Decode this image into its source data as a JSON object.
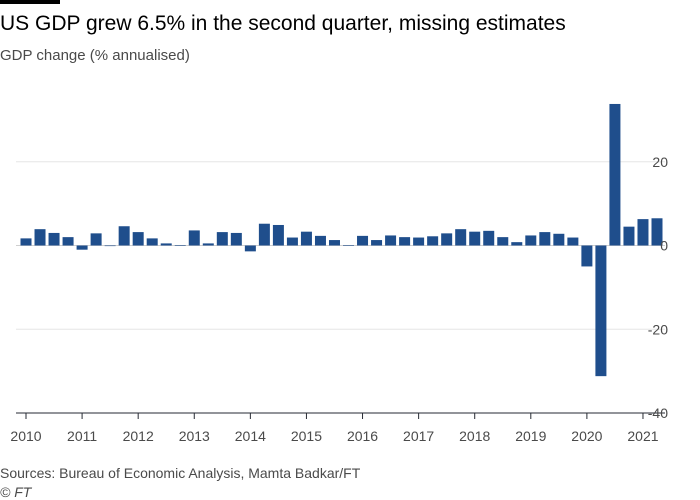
{
  "header": {
    "title": "US GDP grew 6.5% in the second quarter, missing estimates",
    "subtitle": "GDP change (% annualised)"
  },
  "footer": {
    "source": "Sources: Bureau of Economic Analysis, Mamta Badkar/FT",
    "copyright": "© FT"
  },
  "colors": {
    "bar": "#1f4e8c",
    "grid": "#e6e6e6",
    "axis": "#262a33",
    "text": "#4a4a4a"
  },
  "chart_data": {
    "type": "bar",
    "title": "US GDP grew 6.5% in the second quarter, missing estimates",
    "ylabel": "GDP change (% annualised)",
    "xlabel": "",
    "ylim": [
      -40,
      40
    ],
    "yticks": [
      20,
      0,
      -20,
      -40
    ],
    "ytick_labels": [
      "20",
      "0",
      "-20",
      "-40"
    ],
    "y_axis_position": "right",
    "grid": true,
    "legend": "none",
    "year_labels": [
      "2010",
      "2011",
      "2012",
      "2013",
      "2014",
      "2015",
      "2016",
      "2017",
      "2018",
      "2019",
      "2020",
      "2021"
    ],
    "categories": [
      "2010 Q1",
      "2010 Q2",
      "2010 Q3",
      "2010 Q4",
      "2011 Q1",
      "2011 Q2",
      "2011 Q3",
      "2011 Q4",
      "2012 Q1",
      "2012 Q2",
      "2012 Q3",
      "2012 Q4",
      "2013 Q1",
      "2013 Q2",
      "2013 Q3",
      "2013 Q4",
      "2014 Q1",
      "2014 Q2",
      "2014 Q3",
      "2014 Q4",
      "2015 Q1",
      "2015 Q2",
      "2015 Q3",
      "2015 Q4",
      "2016 Q1",
      "2016 Q2",
      "2016 Q3",
      "2016 Q4",
      "2017 Q1",
      "2017 Q2",
      "2017 Q3",
      "2017 Q4",
      "2018 Q1",
      "2018 Q2",
      "2018 Q3",
      "2018 Q4",
      "2019 Q1",
      "2019 Q2",
      "2019 Q3",
      "2019 Q4",
      "2020 Q1",
      "2020 Q2",
      "2020 Q3",
      "2020 Q4",
      "2021 Q1",
      "2021 Q2"
    ],
    "values": [
      1.7,
      3.9,
      3.0,
      2.0,
      -1.0,
      2.9,
      -0.1,
      4.6,
      3.2,
      1.7,
      0.5,
      0.1,
      3.6,
      0.5,
      3.2,
      3.0,
      -1.4,
      5.2,
      4.9,
      1.9,
      3.3,
      2.3,
      1.3,
      0.1,
      2.3,
      1.3,
      2.4,
      2.0,
      1.9,
      2.2,
      2.9,
      3.9,
      3.3,
      3.5,
      2.0,
      0.8,
      2.4,
      3.2,
      2.8,
      1.9,
      -5.0,
      -31.2,
      33.8,
      4.5,
      6.3,
      6.5
    ]
  }
}
